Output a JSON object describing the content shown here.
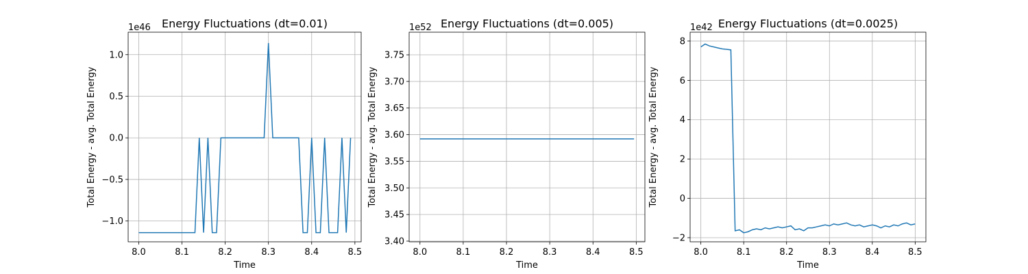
{
  "chart_data": [
    {
      "type": "line",
      "title": "Energy Fluctuations (dt=0.01)",
      "xlabel": "Time",
      "ylabel": "Total Energy - avg. Total Energy",
      "offset_text": "1e46",
      "color": "#1f77b4",
      "grid": true,
      "x": [
        8.0,
        8.01,
        8.02,
        8.03,
        8.04,
        8.05,
        8.06,
        8.07,
        8.08,
        8.09,
        8.1,
        8.11,
        8.12,
        8.13,
        8.14,
        8.15,
        8.16,
        8.17,
        8.18,
        8.19,
        8.2,
        8.21,
        8.22,
        8.23,
        8.24,
        8.25,
        8.26,
        8.27,
        8.28,
        8.29,
        8.3,
        8.31,
        8.32,
        8.33,
        8.34,
        8.35,
        8.36,
        8.37,
        8.38,
        8.39,
        8.4,
        8.41,
        8.42,
        8.43,
        8.44,
        8.45,
        8.46,
        8.47,
        8.48,
        8.49
      ],
      "values": [
        -1.14,
        -1.14,
        -1.14,
        -1.14,
        -1.14,
        -1.14,
        -1.14,
        -1.14,
        -1.14,
        -1.14,
        -1.14,
        -1.14,
        -1.14,
        -1.14,
        0,
        -1.14,
        0,
        -1.14,
        -1.14,
        0,
        0,
        0,
        0,
        0,
        0,
        0,
        0,
        0,
        0,
        0,
        1.14,
        0,
        0,
        0,
        0,
        0,
        0,
        0,
        -1.14,
        -1.14,
        0,
        -1.14,
        -1.14,
        0,
        -1.14,
        -1.14,
        -1.14,
        0,
        -1.14,
        0
      ],
      "xlim": [
        7.9755,
        8.5145
      ],
      "xticks": [
        {
          "value": 8,
          "label": "8.0"
        },
        8.1,
        8.2,
        8.3,
        8.4,
        8.5
      ],
      "ylim": [
        -1.25,
        1.27
      ],
      "yticks": [
        {
          "value": -1,
          "label": "−1.0"
        },
        {
          "value": -0.5,
          "label": "−0.5"
        },
        {
          "value": 0,
          "label": "0.0"
        },
        0.5,
        {
          "value": 1,
          "label": "1.0"
        }
      ]
    },
    {
      "type": "line",
      "title": "Energy Fluctuations (dt=0.005)",
      "xlabel": "Time",
      "ylabel": "Total Energy - avg. Total Energy",
      "offset_text": "1e52",
      "color": "#1f77b4",
      "grid": true,
      "x": [
        8.0,
        8.495
      ],
      "values": [
        3.592,
        3.592
      ],
      "xlim": [
        7.975,
        8.52
      ],
      "xticks": [
        {
          "value": 8,
          "label": "8.0"
        },
        8.1,
        8.2,
        8.3,
        8.4,
        8.5
      ],
      "ylim": [
        3.3987,
        3.7925
      ],
      "yticks": [
        {
          "value": 3.4,
          "label": "3.40"
        },
        3.45,
        {
          "value": 3.5,
          "label": "3.50"
        },
        3.55,
        {
          "value": 3.6,
          "label": "3.60"
        },
        3.65,
        {
          "value": 3.7,
          "label": "3.70"
        },
        3.75
      ]
    },
    {
      "type": "line",
      "title": "Energy Fluctuations (dt=0.0025)",
      "xlabel": "Time",
      "ylabel": "Total Energy - avg. Total Energy",
      "offset_text": "1e42",
      "color": "#1f77b4",
      "grid": true,
      "x": [
        8.0,
        8.01,
        8.02,
        8.03,
        8.04,
        8.05,
        8.06,
        8.07,
        8.08,
        8.09,
        8.1,
        8.11,
        8.12,
        8.13,
        8.14,
        8.15,
        8.16,
        8.17,
        8.18,
        8.19,
        8.2,
        8.21,
        8.22,
        8.23,
        8.24,
        8.25,
        8.26,
        8.27,
        8.28,
        8.29,
        8.3,
        8.31,
        8.32,
        8.33,
        8.34,
        8.35,
        8.36,
        8.37,
        8.38,
        8.39,
        8.4,
        8.41,
        8.42,
        8.43,
        8.44,
        8.45,
        8.46,
        8.47,
        8.48,
        8.49,
        8.5
      ],
      "values": [
        7.7,
        7.85,
        7.75,
        7.7,
        7.65,
        7.6,
        7.58,
        7.55,
        -1.65,
        -1.6,
        -1.75,
        -1.7,
        -1.6,
        -1.55,
        -1.6,
        -1.5,
        -1.55,
        -1.5,
        -1.45,
        -1.5,
        -1.45,
        -1.4,
        -1.6,
        -1.55,
        -1.65,
        -1.5,
        -1.5,
        -1.45,
        -1.4,
        -1.35,
        -1.4,
        -1.3,
        -1.35,
        -1.3,
        -1.25,
        -1.35,
        -1.4,
        -1.35,
        -1.45,
        -1.4,
        -1.35,
        -1.4,
        -1.5,
        -1.4,
        -1.45,
        -1.35,
        -1.4,
        -1.3,
        -1.25,
        -1.35,
        -1.3
      ],
      "xlim": [
        7.975,
        8.525
      ],
      "xticks": [
        {
          "value": 8,
          "label": "8.0"
        },
        8.1,
        8.2,
        8.3,
        8.4,
        8.5
      ],
      "ylim": [
        -2.21,
        8.45
      ],
      "yticks": [
        {
          "value": -2,
          "label": "−2"
        },
        0,
        2,
        4,
        6,
        8
      ]
    }
  ]
}
